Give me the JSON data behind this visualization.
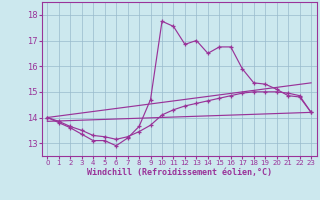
{
  "bg_color": "#cce8ee",
  "line_color": "#993399",
  "grid_color": "#99bbcc",
  "axis_color": "#993399",
  "xlabel": "Windchill (Refroidissement éolien,°C)",
  "xlabel_color": "#993399",
  "tick_color": "#993399",
  "ylabel_ticks": [
    13,
    14,
    15,
    16,
    17,
    18
  ],
  "xlim": [
    -0.5,
    23.5
  ],
  "ylim": [
    12.5,
    18.5
  ],
  "line1_x": [
    0,
    1,
    2,
    3,
    4,
    5,
    6,
    7,
    8,
    9,
    10,
    11,
    12,
    13,
    14,
    15,
    16,
    17,
    18,
    19,
    20,
    21,
    22,
    23
  ],
  "line1_y": [
    14.0,
    13.8,
    13.6,
    13.35,
    13.1,
    13.1,
    12.9,
    13.2,
    13.65,
    14.7,
    17.75,
    17.55,
    16.85,
    17.0,
    16.5,
    16.75,
    16.75,
    15.9,
    15.35,
    15.3,
    15.1,
    14.85,
    14.8,
    14.2
  ],
  "line2_x": [
    0,
    1,
    2,
    3,
    4,
    5,
    6,
    7,
    8,
    9,
    10,
    11,
    12,
    13,
    14,
    15,
    16,
    17,
    18,
    19,
    20,
    21,
    22,
    23
  ],
  "line2_y": [
    14.0,
    13.85,
    13.65,
    13.5,
    13.3,
    13.25,
    13.15,
    13.25,
    13.45,
    13.7,
    14.1,
    14.3,
    14.45,
    14.55,
    14.65,
    14.75,
    14.85,
    14.95,
    15.0,
    15.0,
    15.0,
    14.95,
    14.85,
    14.2
  ],
  "line3_x": [
    0,
    23
  ],
  "line3_y": [
    13.85,
    14.2
  ],
  "line4_x": [
    0,
    23
  ],
  "line4_y": [
    14.0,
    15.35
  ]
}
